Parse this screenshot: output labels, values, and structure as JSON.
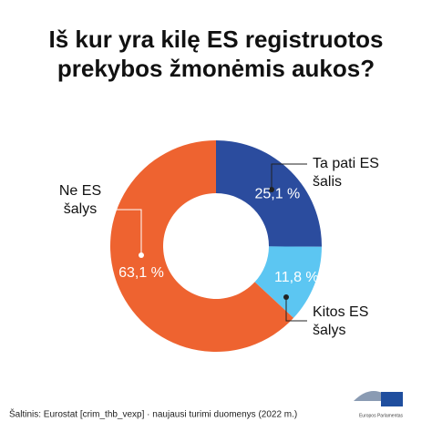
{
  "chart_data": {
    "type": "donut",
    "title": "Iš kur yra kilę ES registruotos\nprekybos žmonėmis aukos?",
    "categories": [
      "Ta pati ES\nšalis",
      "Kitos ES\nšalys",
      "Ne ES\nšalys"
    ],
    "values": [
      25.1,
      11.8,
      63.1
    ],
    "value_labels": [
      "25,1 %",
      "11,8 %",
      "63,1 %"
    ],
    "colors": [
      "#2b4c9e",
      "#5cc6f2",
      "#ee6330"
    ],
    "source": "Šaltinis: Eurostat [crim_thb_vexp] · naujausi turimi duomenys (2022 m.)",
    "logo": "Europos Parlamentas"
  }
}
